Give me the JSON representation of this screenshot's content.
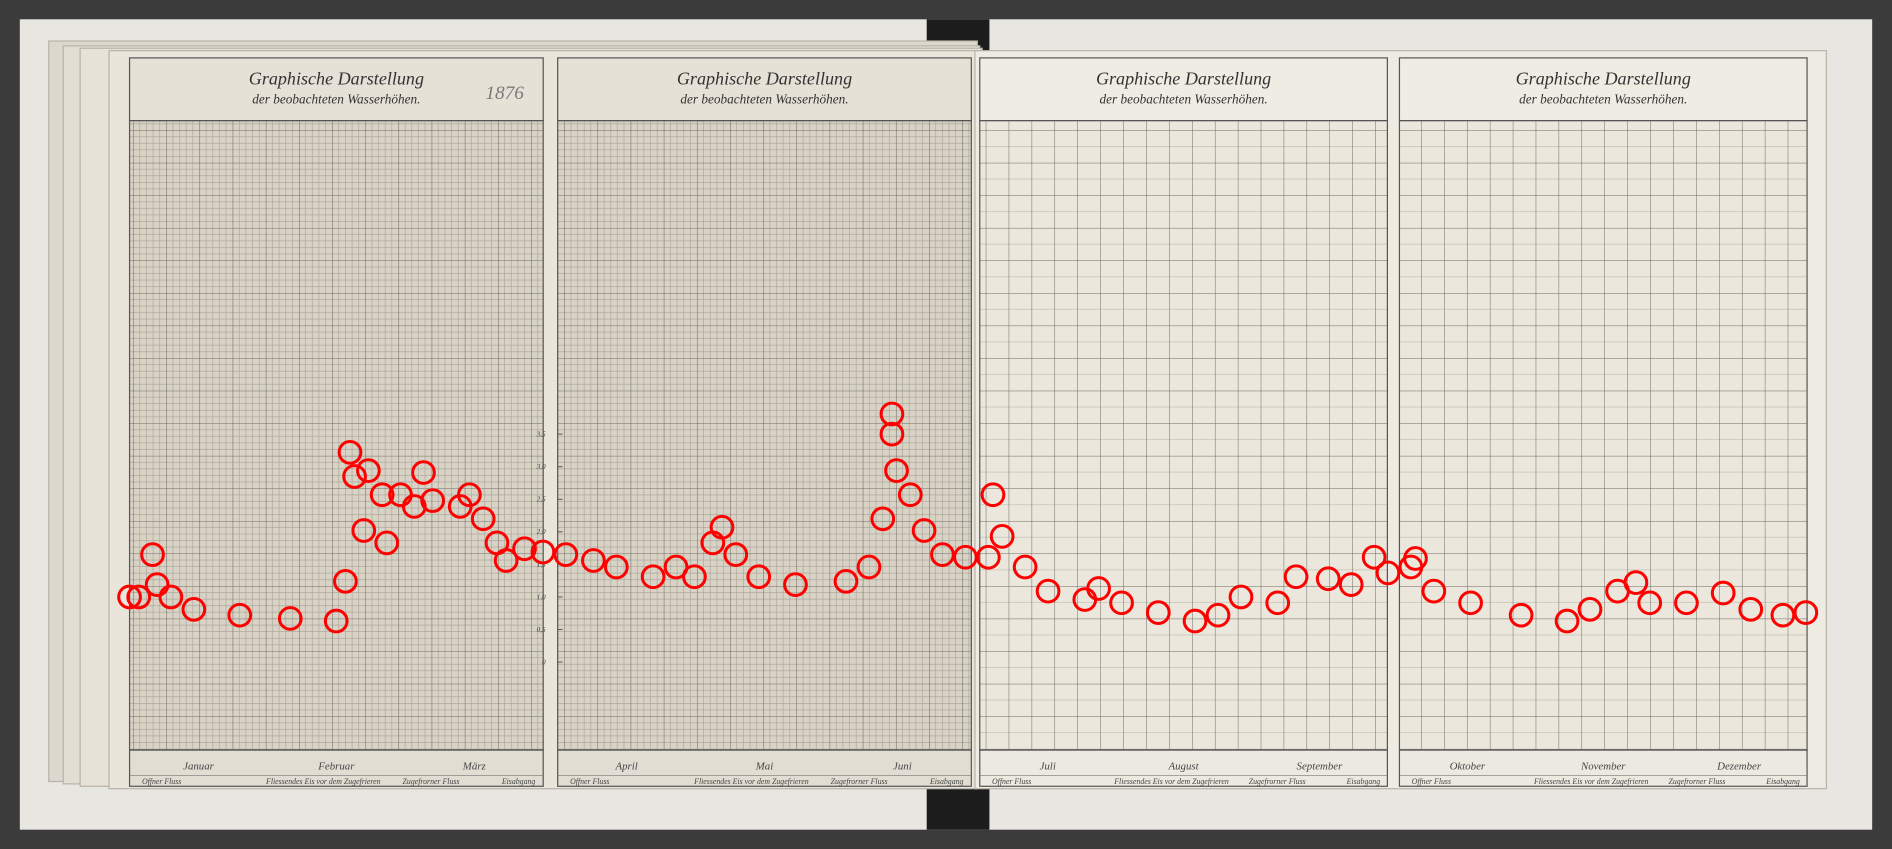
{
  "panels": [
    {
      "title": "Graphische Darstellung",
      "subtitle": "der beobachteten Wasserhöhen.",
      "months": [
        "Januar",
        "Februar",
        "März"
      ],
      "legend": [
        "Offner Fluss",
        "Fliessendes Eis vor dem Zugefrieren",
        "Zugefrorner Fluss",
        "Eisabgang"
      ]
    },
    {
      "title": "Graphische Darstellung",
      "subtitle": "der beobachteten Wasserhöhen.",
      "months": [
        "April",
        "Mai",
        "Juni"
      ],
      "legend": [
        "Offner Fluss",
        "Fliessendes Eis vor dem Zugefrieren",
        "Zugefrorner Fluss",
        "Eisabgang"
      ]
    },
    {
      "title": "Graphische Darstellung",
      "subtitle": "der beobachteten Wasserhöhen.",
      "months": [
        "Juli",
        "August",
        "September"
      ],
      "legend": [
        "Offner Fluss",
        "Fliessendes Eis vor dem Zugefrieren",
        "Zugefrorner Fluss",
        "Eisabgang"
      ]
    },
    {
      "title": "Graphische Darstellung",
      "subtitle": "der beobachteten Wasserhöhen.",
      "months": [
        "Oktober",
        "November",
        "Dezember"
      ],
      "legend": [
        "Offner Fluss",
        "Fliessendes Eis vor dem Zugefrieren",
        "Zugefrorner Fluss",
        "Eisabgang"
      ]
    }
  ],
  "year_note": "1876",
  "chart_data": {
    "type": "scatter",
    "color": "#ff0000",
    "xlim": [
      1,
      366
    ],
    "ylim": [
      0,
      4
    ],
    "yticks": [
      0,
      {
        "value": 0.5,
        "label": "0,5"
      },
      {
        "value": 1,
        "label": "1,0"
      },
      {
        "value": 1.5,
        "label": "1,5"
      },
      {
        "value": 2,
        "label": "2,0"
      },
      {
        "value": 2.5,
        "label": "2,5"
      },
      {
        "value": 3,
        "label": "3,0"
      },
      {
        "value": 3.5,
        "label": "3,5"
      }
    ],
    "x": [
      1,
      3,
      6,
      7,
      10,
      15,
      25,
      36,
      46,
      48,
      49,
      50,
      52,
      53,
      56,
      57,
      60,
      63,
      65,
      67,
      73,
      75,
      78,
      81,
      83,
      87,
      91,
      96,
      102,
      107,
      115,
      120,
      124,
      128,
      130,
      133,
      138,
      146,
      157,
      162,
      165,
      167,
      167,
      168,
      171,
      174,
      178,
      183,
      188,
      189,
      191,
      196,
      201,
      209,
      212,
      217,
      225,
      233,
      238,
      243,
      251,
      255,
      262,
      267,
      272,
      275,
      280,
      281,
      285,
      293,
      304,
      314,
      319,
      325,
      329,
      332,
      340,
      348,
      354,
      361,
      366
    ],
    "values": [
      1.0,
      1.0,
      1.65,
      1.19,
      1.0,
      0.81,
      0.72,
      0.67,
      0.63,
      1.24,
      3.22,
      2.85,
      2.02,
      2.94,
      2.57,
      1.83,
      2.57,
      2.39,
      2.91,
      2.48,
      2.39,
      2.57,
      2.2,
      1.83,
      1.56,
      1.74,
      1.69,
      1.65,
      1.56,
      1.46,
      1.31,
      1.46,
      1.31,
      1.83,
      2.07,
      1.65,
      1.31,
      1.19,
      1.24,
      1.46,
      2.2,
      3.5,
      3.81,
      2.94,
      2.57,
      2.02,
      1.65,
      1.61,
      1.61,
      2.57,
      1.93,
      1.46,
      1.09,
      0.96,
      1.13,
      0.91,
      0.76,
      0.63,
      0.72,
      1.0,
      0.91,
      1.31,
      1.28,
      1.19,
      1.61,
      1.37,
      1.46,
      1.59,
      1.09,
      0.91,
      0.72,
      0.63,
      0.81,
      1.09,
      1.22,
      0.91,
      0.91,
      1.06,
      0.81,
      0.72,
      0.76
    ]
  }
}
